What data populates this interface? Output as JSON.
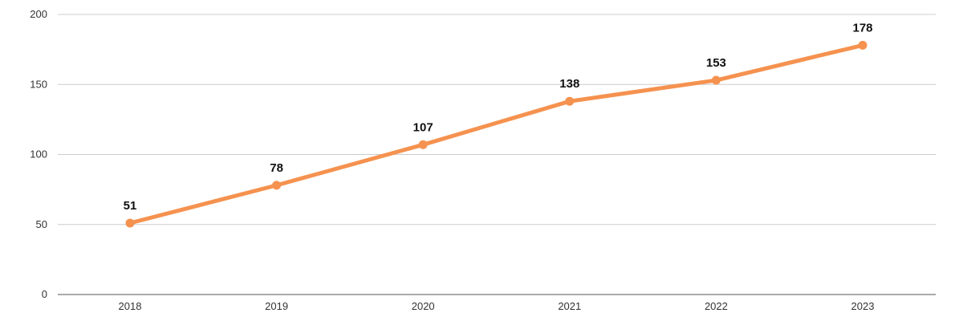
{
  "chart_data": {
    "type": "line",
    "title": "",
    "xlabel": "",
    "ylabel": "",
    "x": [
      "2018",
      "2019",
      "2020",
      "2021",
      "2022",
      "2023"
    ],
    "series": [
      {
        "values": [
          51,
          78,
          107,
          138,
          153,
          178
        ],
        "color": "#F5924F"
      }
    ],
    "data_labels": [
      "51",
      "78",
      "107",
      "138",
      "153",
      "178"
    ],
    "ylim": [
      0,
      200
    ],
    "y_ticks": [
      0,
      50,
      100,
      150,
      200
    ],
    "y_tick_labels": [
      "0",
      "50",
      "100",
      "150",
      "200"
    ],
    "grid": true,
    "grid_color": "#cccccc",
    "axis_color": "#555555",
    "legend": "none"
  }
}
